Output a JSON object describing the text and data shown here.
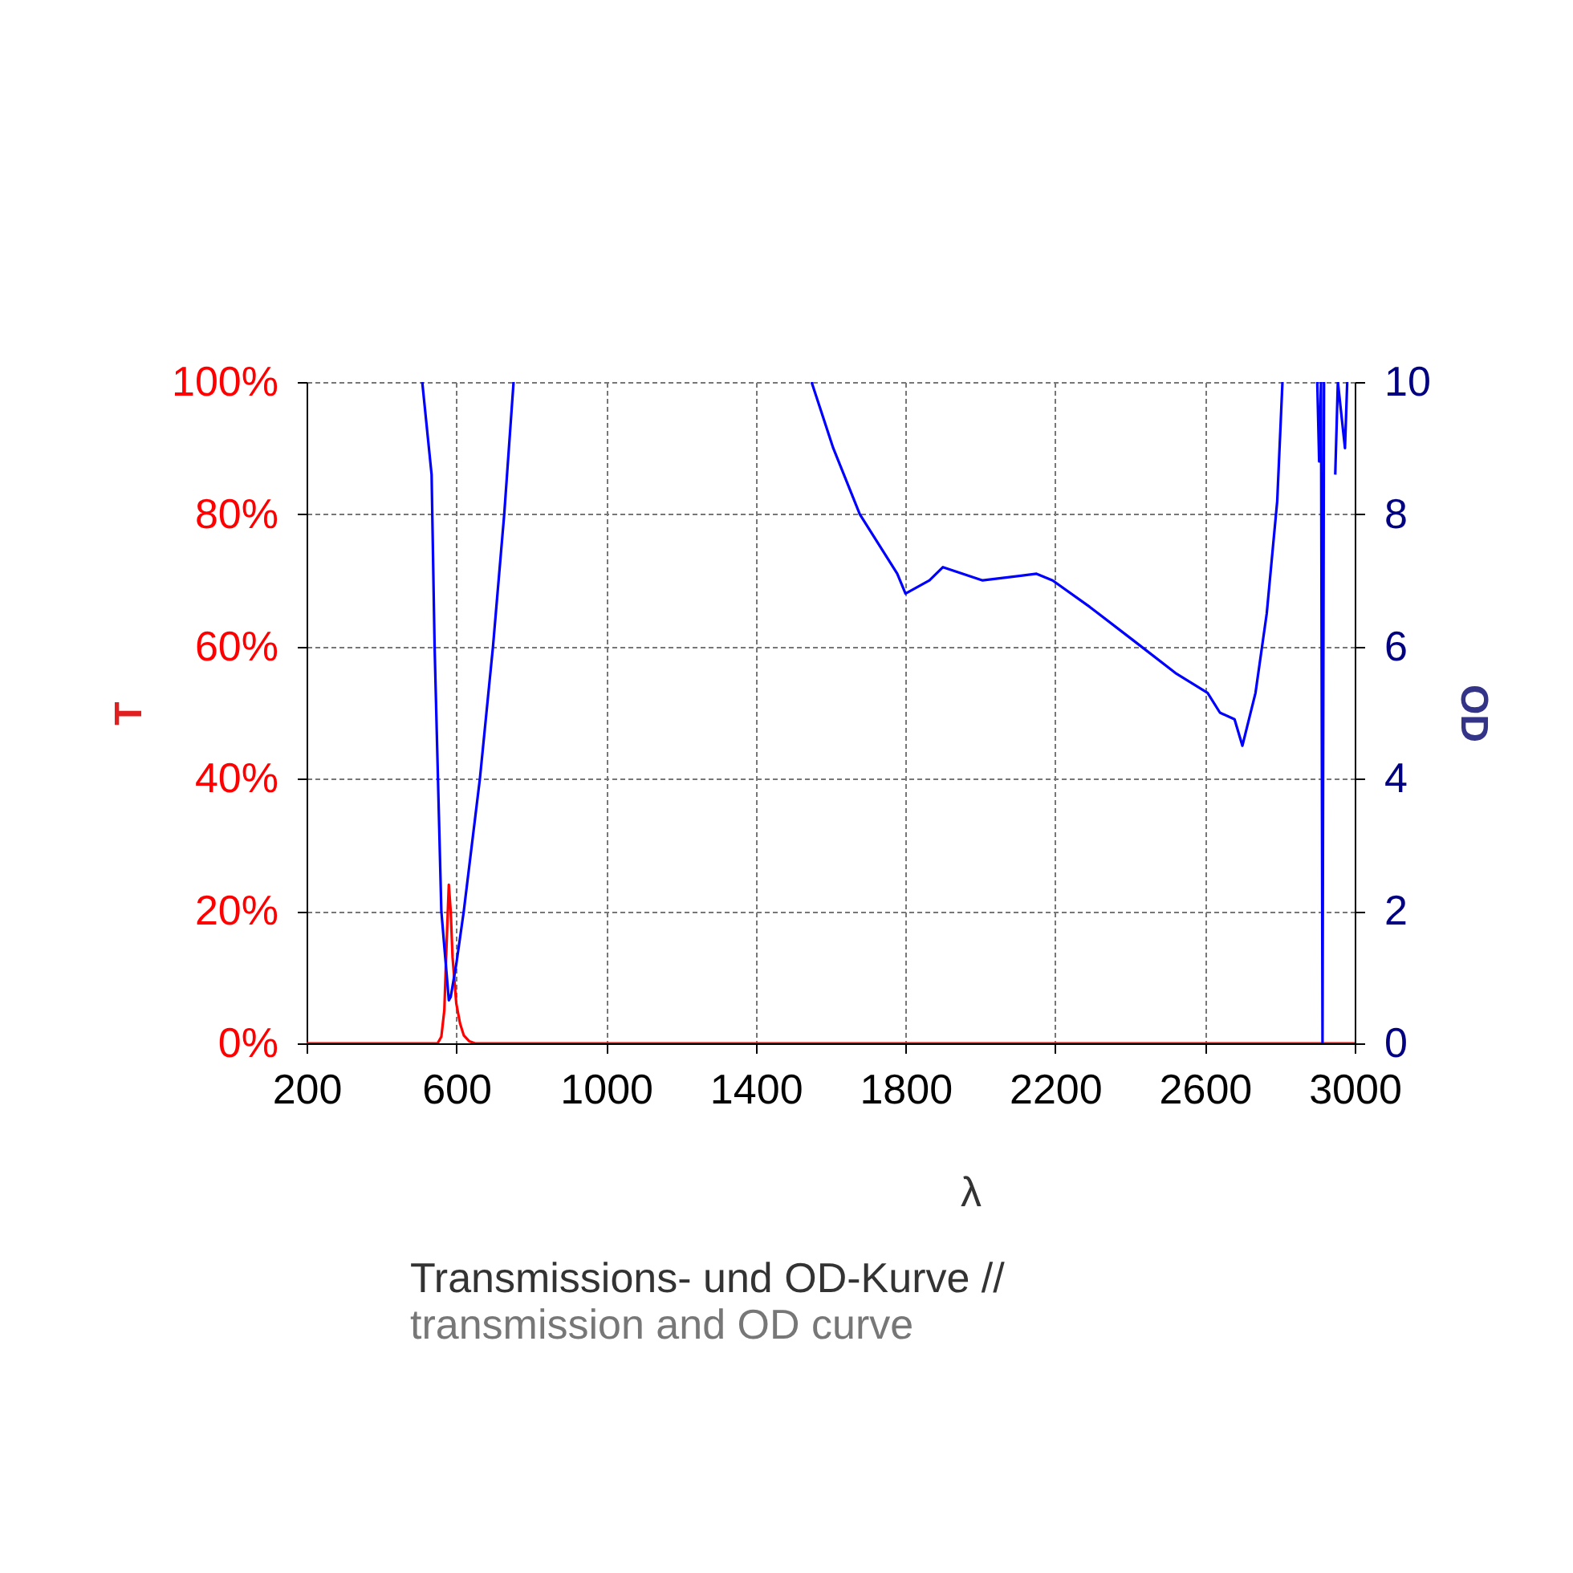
{
  "chart_data": {
    "type": "line",
    "title": "Transmissions- und OD-Kurve //",
    "subtitle": "transmission and OD curve",
    "xlabel": "λ",
    "ylabel": "T",
    "y2label": "OD",
    "xlim": [
      200,
      3000
    ],
    "xticks": [
      200,
      600,
      1000,
      1400,
      1800,
      2200,
      2600,
      3000
    ],
    "ylim": [
      0,
      100
    ],
    "yticks": [
      {
        "value": 0,
        "label": "0%"
      },
      {
        "value": 20,
        "label": "20%"
      },
      {
        "value": 40,
        "label": "40%"
      },
      {
        "value": 60,
        "label": "60%"
      },
      {
        "value": 80,
        "label": "80%"
      },
      {
        "value": 100,
        "label": "100%"
      }
    ],
    "y2lim": [
      0,
      10
    ],
    "y2ticks": [
      0,
      2,
      4,
      6,
      8,
      10
    ],
    "grid": true,
    "line_style": "solid",
    "marker": "none",
    "series": [
      {
        "color": "#ff0000",
        "x": [
          200,
          550,
          560,
          568,
          574,
          580,
          585,
          590,
          600,
          610,
          620,
          635,
          650,
          3000
        ],
        "values": [
          0,
          0,
          1,
          5,
          15,
          24,
          20,
          13,
          6,
          3,
          1.2,
          0.3,
          0,
          0
        ]
      },
      {
        "color": "#0000ff",
        "axis": "y2",
        "x": [
          509,
          534,
          542,
          560,
          580,
          585,
          600,
          620,
          663,
          698,
          728,
          753,
          1100,
          1549,
          1607,
          1678,
          1778,
          1800,
          1864,
          1900,
          2006,
          2150,
          2193,
          2292,
          2407,
          2521,
          2607,
          2640,
          2679,
          2700,
          2735,
          2765,
          2793,
          2807,
          2850,
          2900,
          2905,
          2910,
          2914,
          2918,
          2930,
          2948,
          2955,
          2974,
          2980
        ],
        "values": [
          10,
          8.6,
          6,
          2,
          0.65,
          0.7,
          1.2,
          2,
          4,
          6,
          8,
          10,
          null,
          10,
          9,
          8,
          7.1,
          6.8,
          7.0,
          7.2,
          7.0,
          7.1,
          7.0,
          6.6,
          6.1,
          5.6,
          5.3,
          5.0,
          4.9,
          4.5,
          5.3,
          6.5,
          8.2,
          10,
          null,
          10,
          8.8,
          10,
          0,
          10,
          null,
          8.6,
          10,
          9.0,
          10
        ]
      }
    ]
  }
}
